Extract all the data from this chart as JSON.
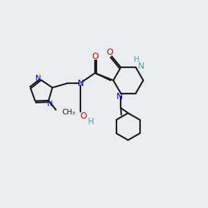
{
  "background_color": "#eaeef2",
  "bond_color": "#1a1a1a",
  "nitrogen_color": "#0000cc",
  "oxygen_color": "#cc0000",
  "nh_color": "#5a9898",
  "oh_color": "#5a9898",
  "line_width": 1.6,
  "figsize": [
    3.0,
    3.0
  ],
  "dpi": 100,
  "xlim": [
    0,
    10
  ],
  "ylim": [
    0,
    10
  ]
}
